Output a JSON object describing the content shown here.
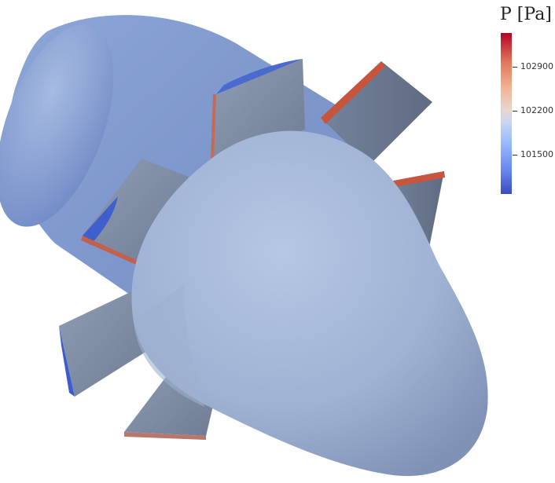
{
  "legend": {
    "title": "P [Pa]",
    "ticks": [
      "102900",
      "102200",
      "101500"
    ],
    "colormap": {
      "low": "#3b4cc0",
      "mid": "#dddcdc",
      "high": "#b40426"
    }
  }
}
